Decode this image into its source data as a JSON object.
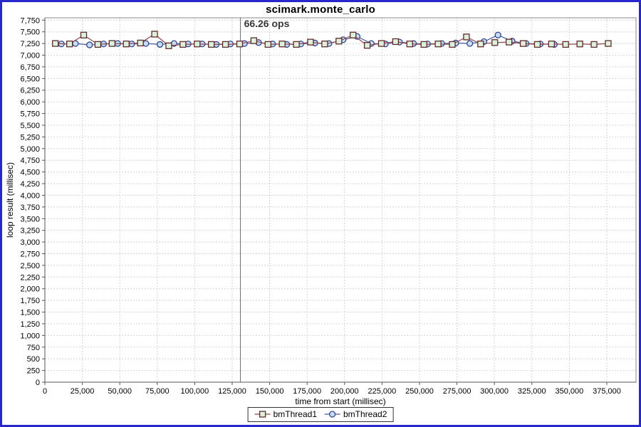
{
  "window": {
    "border_color": "#2727cd",
    "background": "#ffffff"
  },
  "chart_data": {
    "type": "line",
    "title": "scimark.monte_carlo",
    "xlabel": "time from start (millisec)",
    "ylabel": "loop result (millisec)",
    "xlim": [
      0,
      394500
    ],
    "ylim": [
      0,
      7800
    ],
    "x_ticks": [
      0,
      25000,
      50000,
      75000,
      100000,
      125000,
      150000,
      175000,
      200000,
      225000,
      250000,
      275000,
      300000,
      325000,
      350000,
      375000
    ],
    "y_ticks": [
      0,
      250,
      500,
      750,
      1000,
      1250,
      1500,
      1750,
      2000,
      2250,
      2500,
      2750,
      3000,
      3250,
      3500,
      3750,
      4000,
      4250,
      4500,
      4750,
      5000,
      5250,
      5500,
      5750,
      6000,
      6250,
      6500,
      6750,
      7000,
      7250,
      7500,
      7750
    ],
    "tick_format": "comma",
    "grid": true,
    "gridline_color": "#d4d4d4",
    "plot_outline_color": "#888888",
    "axis_line_color": "#555555",
    "legend_position": "bottom",
    "annotation": {
      "text": "66.26 ops",
      "x": 130500,
      "y": 7750,
      "color": "#383838"
    },
    "crosshair": {
      "x": 130500,
      "color": "#6b6b6b"
    },
    "series": [
      {
        "name": "bmThread1",
        "marker": "square",
        "line_color": "#8f4444",
        "marker_fill": "#ddf0dd",
        "marker_stroke": "#5f2b2b",
        "x": [
          7000,
          16460,
          25920,
          35380,
          44840,
          54300,
          63760,
          73220,
          82680,
          92140,
          101600,
          111060,
          120520,
          129980,
          139440,
          148900,
          158360,
          167820,
          177280,
          186740,
          196200,
          205660,
          215120,
          224580,
          234040,
          243500,
          252960,
          262420,
          271880,
          281340,
          290800,
          300260,
          309720,
          319180,
          328640,
          338100,
          347560,
          357020,
          366480,
          375940
        ],
        "y": [
          7250,
          7240,
          7430,
          7230,
          7250,
          7240,
          7260,
          7450,
          7200,
          7230,
          7240,
          7230,
          7230,
          7240,
          7310,
          7230,
          7240,
          7230,
          7280,
          7240,
          7300,
          7430,
          7210,
          7250,
          7290,
          7240,
          7230,
          7240,
          7230,
          7390,
          7240,
          7270,
          7280,
          7250,
          7230,
          7240,
          7230,
          7240,
          7230,
          7250
        ]
      },
      {
        "name": "bmThread2",
        "marker": "circle",
        "line_color": "#4a5aa0",
        "marker_fill": "#c4ddf0",
        "marker_stroke": "#33448c",
        "x": [
          11000,
          20400,
          29800,
          39200,
          48600,
          58000,
          67400,
          76800,
          86200,
          95600,
          105000,
          114400,
          123800,
          133200,
          142600,
          152000,
          161400,
          170800,
          180200,
          189600,
          199000,
          208400,
          217800,
          227200,
          236600,
          246000,
          255400,
          264800,
          274200,
          283600,
          293000,
          302400,
          311800,
          321200,
          330600,
          340000
        ],
        "y": [
          7240,
          7250,
          7220,
          7240,
          7250,
          7240,
          7250,
          7230,
          7250,
          7240,
          7240,
          7230,
          7240,
          7250,
          7270,
          7240,
          7230,
          7240,
          7260,
          7250,
          7330,
          7400,
          7250,
          7240,
          7280,
          7250,
          7240,
          7250,
          7260,
          7250,
          7290,
          7430,
          7300,
          7250,
          7240,
          7230
        ]
      }
    ]
  }
}
